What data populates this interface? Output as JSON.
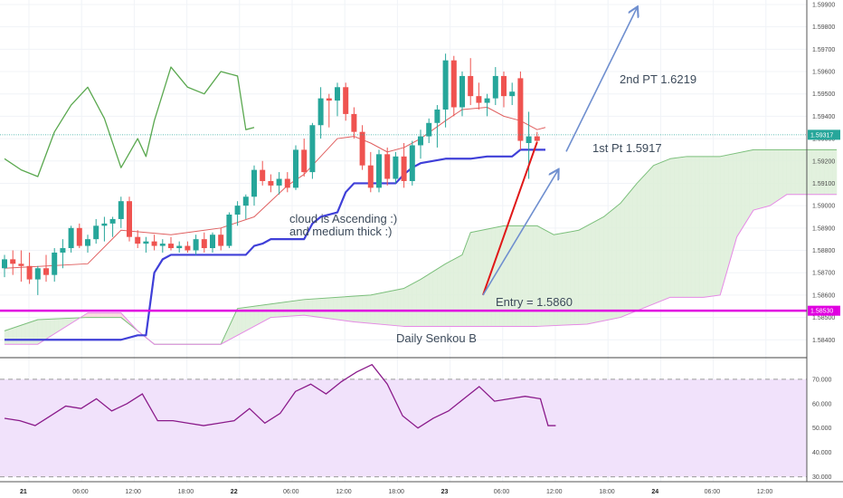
{
  "chart_data": {
    "type": "candlestick",
    "price_panel": {
      "ylim": [
        1.5832,
        1.5992
      ],
      "y_ticks": [
        "1.59900",
        "1.59800",
        "1.59700",
        "1.59600",
        "1.59500",
        "1.59400",
        "1.59300",
        "1.59200",
        "1.59100",
        "1.59000",
        "1.58900",
        "1.58800",
        "1.58700",
        "1.58600",
        "1.58500",
        "1.58400"
      ],
      "current_price_label": "1.59317",
      "current_price": 1.59317,
      "support_label": "1.58530",
      "support_price": 1.5853,
      "candles": [
        {
          "o": 1.5872,
          "h": 1.5878,
          "l": 1.5868,
          "c": 1.5876
        },
        {
          "o": 1.5876,
          "h": 1.588,
          "l": 1.5869,
          "c": 1.5874
        },
        {
          "o": 1.5874,
          "h": 1.588,
          "l": 1.5866,
          "c": 1.5873
        },
        {
          "o": 1.5873,
          "h": 1.5879,
          "l": 1.5865,
          "c": 1.5867
        },
        {
          "o": 1.5867,
          "h": 1.5873,
          "l": 1.586,
          "c": 1.5872
        },
        {
          "o": 1.5872,
          "h": 1.5878,
          "l": 1.5866,
          "c": 1.5869
        },
        {
          "o": 1.5869,
          "h": 1.5881,
          "l": 1.5866,
          "c": 1.5879
        },
        {
          "o": 1.5879,
          "h": 1.5885,
          "l": 1.5872,
          "c": 1.5881
        },
        {
          "o": 1.5881,
          "h": 1.5891,
          "l": 1.5879,
          "c": 1.589
        },
        {
          "o": 1.589,
          "h": 1.5892,
          "l": 1.5881,
          "c": 1.5882
        },
        {
          "o": 1.5882,
          "h": 1.5887,
          "l": 1.5879,
          "c": 1.5885
        },
        {
          "o": 1.5885,
          "h": 1.5894,
          "l": 1.5883,
          "c": 1.5891
        },
        {
          "o": 1.5891,
          "h": 1.5895,
          "l": 1.5884,
          "c": 1.5892
        },
        {
          "o": 1.5892,
          "h": 1.5895,
          "l": 1.5886,
          "c": 1.5894
        },
        {
          "o": 1.5894,
          "h": 1.5904,
          "l": 1.589,
          "c": 1.5902
        },
        {
          "o": 1.5902,
          "h": 1.5904,
          "l": 1.5884,
          "c": 1.5886
        },
        {
          "o": 1.5886,
          "h": 1.5889,
          "l": 1.5881,
          "c": 1.5883
        },
        {
          "o": 1.5883,
          "h": 1.5886,
          "l": 1.5879,
          "c": 1.5884
        },
        {
          "o": 1.5884,
          "h": 1.5887,
          "l": 1.588,
          "c": 1.5882
        },
        {
          "o": 1.5882,
          "h": 1.5885,
          "l": 1.5879,
          "c": 1.5883
        },
        {
          "o": 1.5883,
          "h": 1.5886,
          "l": 1.588,
          "c": 1.5881
        },
        {
          "o": 1.5881,
          "h": 1.5884,
          "l": 1.5879,
          "c": 1.5882
        },
        {
          "o": 1.5882,
          "h": 1.5884,
          "l": 1.5879,
          "c": 1.588
        },
        {
          "o": 1.588,
          "h": 1.5887,
          "l": 1.5878,
          "c": 1.5885
        },
        {
          "o": 1.5885,
          "h": 1.5888,
          "l": 1.5879,
          "c": 1.5881
        },
        {
          "o": 1.5881,
          "h": 1.5888,
          "l": 1.5879,
          "c": 1.5887
        },
        {
          "o": 1.5887,
          "h": 1.589,
          "l": 1.588,
          "c": 1.5882
        },
        {
          "o": 1.5882,
          "h": 1.5897,
          "l": 1.5881,
          "c": 1.5896
        },
        {
          "o": 1.5896,
          "h": 1.5902,
          "l": 1.5891,
          "c": 1.59
        },
        {
          "o": 1.59,
          "h": 1.5905,
          "l": 1.5894,
          "c": 1.5904
        },
        {
          "o": 1.5904,
          "h": 1.5918,
          "l": 1.59,
          "c": 1.5916
        },
        {
          "o": 1.5916,
          "h": 1.592,
          "l": 1.5909,
          "c": 1.5911
        },
        {
          "o": 1.5911,
          "h": 1.5914,
          "l": 1.5906,
          "c": 1.5909
        },
        {
          "o": 1.5909,
          "h": 1.5915,
          "l": 1.5905,
          "c": 1.5912
        },
        {
          "o": 1.5912,
          "h": 1.5915,
          "l": 1.5906,
          "c": 1.5908
        },
        {
          "o": 1.5908,
          "h": 1.5927,
          "l": 1.5907,
          "c": 1.5925
        },
        {
          "o": 1.5925,
          "h": 1.593,
          "l": 1.5913,
          "c": 1.5915
        },
        {
          "o": 1.5915,
          "h": 1.5937,
          "l": 1.5912,
          "c": 1.5936
        },
        {
          "o": 1.5936,
          "h": 1.5953,
          "l": 1.593,
          "c": 1.5948
        },
        {
          "o": 1.5948,
          "h": 1.595,
          "l": 1.5935,
          "c": 1.5947
        },
        {
          "o": 1.5947,
          "h": 1.5955,
          "l": 1.594,
          "c": 1.5953
        },
        {
          "o": 1.5953,
          "h": 1.5955,
          "l": 1.5938,
          "c": 1.5941
        },
        {
          "o": 1.5941,
          "h": 1.5944,
          "l": 1.593,
          "c": 1.5933
        },
        {
          "o": 1.5933,
          "h": 1.5936,
          "l": 1.5916,
          "c": 1.5918
        },
        {
          "o": 1.5918,
          "h": 1.5924,
          "l": 1.5906,
          "c": 1.5908
        },
        {
          "o": 1.5908,
          "h": 1.5925,
          "l": 1.5906,
          "c": 1.5923
        },
        {
          "o": 1.5923,
          "h": 1.5926,
          "l": 1.5909,
          "c": 1.5912
        },
        {
          "o": 1.5912,
          "h": 1.5924,
          "l": 1.591,
          "c": 1.5922
        },
        {
          "o": 1.5922,
          "h": 1.5928,
          "l": 1.5908,
          "c": 1.5911
        },
        {
          "o": 1.5911,
          "h": 1.5929,
          "l": 1.5909,
          "c": 1.5927
        },
        {
          "o": 1.5927,
          "h": 1.5934,
          "l": 1.5921,
          "c": 1.5931
        },
        {
          "o": 1.5931,
          "h": 1.5939,
          "l": 1.5928,
          "c": 1.5937
        },
        {
          "o": 1.5937,
          "h": 1.5945,
          "l": 1.5926,
          "c": 1.5943
        },
        {
          "o": 1.5943,
          "h": 1.5968,
          "l": 1.5935,
          "c": 1.5965
        },
        {
          "o": 1.5965,
          "h": 1.5967,
          "l": 1.594,
          "c": 1.5944
        },
        {
          "o": 1.5944,
          "h": 1.596,
          "l": 1.594,
          "c": 1.5958
        },
        {
          "o": 1.5958,
          "h": 1.5966,
          "l": 1.5945,
          "c": 1.5949
        },
        {
          "o": 1.5949,
          "h": 1.5955,
          "l": 1.5943,
          "c": 1.5946
        },
        {
          "o": 1.5946,
          "h": 1.595,
          "l": 1.594,
          "c": 1.5948
        },
        {
          "o": 1.5948,
          "h": 1.5962,
          "l": 1.5945,
          "c": 1.5958
        },
        {
          "o": 1.5958,
          "h": 1.596,
          "l": 1.5944,
          "c": 1.5949
        },
        {
          "o": 1.5949,
          "h": 1.5955,
          "l": 1.5945,
          "c": 1.5951
        },
        {
          "o": 1.5957,
          "h": 1.596,
          "l": 1.5925,
          "c": 1.5929
        },
        {
          "o": 1.5928,
          "h": 1.5942,
          "l": 1.5912,
          "c": 1.5931
        },
        {
          "o": 1.5931,
          "h": 1.5933,
          "l": 1.5928,
          "c": 1.5929
        }
      ],
      "kijun_sen": [
        [
          0,
          1.584
        ],
        [
          14,
          1.584
        ],
        [
          16,
          1.5842
        ],
        [
          17,
          1.5842
        ],
        [
          18,
          1.587
        ],
        [
          19,
          1.5876
        ],
        [
          20,
          1.5878
        ],
        [
          29,
          1.5878
        ],
        [
          30,
          1.5882
        ],
        [
          31,
          1.5883
        ],
        [
          32,
          1.5885
        ],
        [
          36,
          1.5885
        ],
        [
          37,
          1.5892
        ],
        [
          38,
          1.5895
        ],
        [
          40,
          1.5897
        ],
        [
          41,
          1.5906
        ],
        [
          42,
          1.591
        ],
        [
          47,
          1.591
        ],
        [
          48,
          1.5914
        ],
        [
          49,
          1.5917
        ],
        [
          50,
          1.5919
        ],
        [
          53,
          1.5921
        ],
        [
          56,
          1.5921
        ],
        [
          58,
          1.5922
        ],
        [
          61,
          1.5922
        ],
        [
          62,
          1.5925
        ],
        [
          65,
          1.5925
        ]
      ],
      "tenkan_sen": [
        [
          0,
          1.5872
        ],
        [
          10,
          1.5874
        ],
        [
          14,
          1.5889
        ],
        [
          20,
          1.5887
        ],
        [
          26,
          1.589
        ],
        [
          30,
          1.5895
        ],
        [
          34,
          1.5909
        ],
        [
          36,
          1.5914
        ],
        [
          38,
          1.5922
        ],
        [
          40,
          1.593
        ],
        [
          42,
          1.5931
        ],
        [
          44,
          1.5928
        ],
        [
          46,
          1.5924
        ],
        [
          48,
          1.5926
        ],
        [
          50,
          1.593
        ],
        [
          53,
          1.5938
        ],
        [
          55,
          1.5943
        ],
        [
          58,
          1.5944
        ],
        [
          60,
          1.594
        ],
        [
          62,
          1.5938
        ],
        [
          64,
          1.5934
        ],
        [
          65,
          1.5935
        ]
      ],
      "chikou_span": [
        [
          0,
          1.5921
        ],
        [
          2,
          1.5916
        ],
        [
          4,
          1.5913
        ],
        [
          6,
          1.5933
        ],
        [
          8,
          1.5945
        ],
        [
          10,
          1.5953
        ],
        [
          12,
          1.5939
        ],
        [
          14,
          1.5917
        ],
        [
          16,
          1.593
        ],
        [
          17,
          1.5922
        ],
        [
          18,
          1.5938
        ],
        [
          20,
          1.5962
        ],
        [
          22,
          1.5953
        ],
        [
          24,
          1.595
        ],
        [
          26,
          1.596
        ],
        [
          28,
          1.5958
        ],
        [
          29,
          1.5934
        ],
        [
          30,
          1.5935
        ]
      ],
      "senkou_span_a": [
        [
          0,
          1.5844
        ],
        [
          4,
          1.5849
        ],
        [
          10,
          1.585
        ],
        [
          14,
          1.585
        ],
        [
          16,
          1.5844
        ],
        [
          18,
          1.5838
        ],
        [
          26,
          1.5838
        ],
        [
          28,
          1.5854
        ],
        [
          32,
          1.5856
        ],
        [
          36,
          1.5858
        ],
        [
          44,
          1.586
        ],
        [
          48,
          1.5863
        ],
        [
          50,
          1.5867
        ],
        [
          53,
          1.5874
        ],
        [
          55,
          1.5878
        ],
        [
          56,
          1.5888
        ],
        [
          60,
          1.5891
        ],
        [
          64,
          1.5891
        ],
        [
          66,
          1.5887
        ],
        [
          69,
          1.5889
        ],
        [
          72,
          1.5895
        ],
        [
          74,
          1.5901
        ],
        [
          76,
          1.591
        ],
        [
          78,
          1.5918
        ],
        [
          80,
          1.5921
        ],
        [
          82,
          1.5922
        ],
        [
          86,
          1.5922
        ],
        [
          90,
          1.5925
        ],
        [
          100,
          1.5925
        ]
      ],
      "senkou_span_b": [
        [
          0,
          1.5838
        ],
        [
          4,
          1.5838
        ],
        [
          10,
          1.5852
        ],
        [
          14,
          1.5852
        ],
        [
          16,
          1.5844
        ],
        [
          18,
          1.5838
        ],
        [
          26,
          1.5838
        ],
        [
          32,
          1.585
        ],
        [
          36,
          1.5851
        ],
        [
          42,
          1.5848
        ],
        [
          48,
          1.5846
        ],
        [
          56,
          1.5846
        ],
        [
          64,
          1.5846
        ],
        [
          70,
          1.5847
        ],
        [
          74,
          1.585
        ],
        [
          80,
          1.5859
        ],
        [
          84,
          1.5859
        ],
        [
          86,
          1.586
        ],
        [
          88,
          1.5886
        ],
        [
          90,
          1.5898
        ],
        [
          92,
          1.59
        ],
        [
          94,
          1.5905
        ],
        [
          100,
          1.5905
        ]
      ]
    },
    "rsi_panel": {
      "ylim": [
        28,
        77
      ],
      "y_ticks": [
        "70.000",
        "60.000",
        "50.000",
        "40.000",
        "30.000"
      ],
      "band": [
        30,
        70
      ],
      "values": [
        [
          0,
          54
        ],
        [
          2,
          53
        ],
        [
          4,
          51
        ],
        [
          6,
          55
        ],
        [
          8,
          59
        ],
        [
          10,
          58
        ],
        [
          12,
          62
        ],
        [
          14,
          57
        ],
        [
          16,
          60
        ],
        [
          18,
          64
        ],
        [
          20,
          53
        ],
        [
          22,
          53
        ],
        [
          24,
          52
        ],
        [
          26,
          51
        ],
        [
          28,
          52
        ],
        [
          30,
          53
        ],
        [
          32,
          58
        ],
        [
          34,
          52
        ],
        [
          36,
          56
        ],
        [
          38,
          65
        ],
        [
          40,
          68
        ],
        [
          42,
          64
        ],
        [
          44,
          69
        ],
        [
          46,
          73
        ],
        [
          48,
          76
        ],
        [
          50,
          68
        ],
        [
          52,
          55
        ],
        [
          54,
          50
        ],
        [
          56,
          54
        ],
        [
          58,
          57
        ],
        [
          60,
          62
        ],
        [
          62,
          67
        ],
        [
          64,
          61
        ],
        [
          66,
          62
        ],
        [
          68,
          63
        ],
        [
          70,
          62
        ],
        [
          71,
          51
        ],
        [
          72,
          51
        ]
      ]
    },
    "x_ticks": [
      {
        "label": "21",
        "pos": 0,
        "day": true
      },
      {
        "label": "06:00",
        "pos": 6
      },
      {
        "label": "12:00",
        "pos": 12
      },
      {
        "label": "18:00",
        "pos": 18
      },
      {
        "label": "22",
        "pos": 24,
        "day": true
      },
      {
        "label": "06:00",
        "pos": 30
      },
      {
        "label": "12:00",
        "pos": 36
      },
      {
        "label": "18:00",
        "pos": 42
      },
      {
        "label": "23",
        "pos": 48,
        "day": true
      },
      {
        "label": "06:00",
        "pos": 54
      },
      {
        "label": "12:00",
        "pos": 60
      },
      {
        "label": "18:00",
        "pos": 66
      },
      {
        "label": "24",
        "pos": 72,
        "day": true
      },
      {
        "label": "06:00",
        "pos": 78
      },
      {
        "label": "12:00",
        "pos": 84
      }
    ]
  },
  "annotations": {
    "note_cloud_1": "cloud is Ascending :)",
    "note_cloud_2": "and medium thick :)",
    "entry_label": "Entry = 1.5860",
    "pt1_label": "1st Pt 1.5917",
    "pt2_label": "2nd PT 1.6219",
    "senkou_label": "Daily Senkou B"
  },
  "colors": {
    "bull": "#26a69a",
    "bear": "#ef5350",
    "kijun": "#3f3fd8",
    "tenkan": "#e06060",
    "chikou": "#5aa84f",
    "span_a": "#7bbf7b",
    "span_b": "#e68ae6",
    "cloud_bull": "#dff0db",
    "cloud_bear": "#f9dcdc",
    "support": "#e000e0",
    "current": "#26a69a",
    "arrow_up": "#6f8fcf",
    "arrow_down": "#e01818",
    "rsi": "#8a1a8a",
    "rsi_band": "#f1e2fb"
  }
}
